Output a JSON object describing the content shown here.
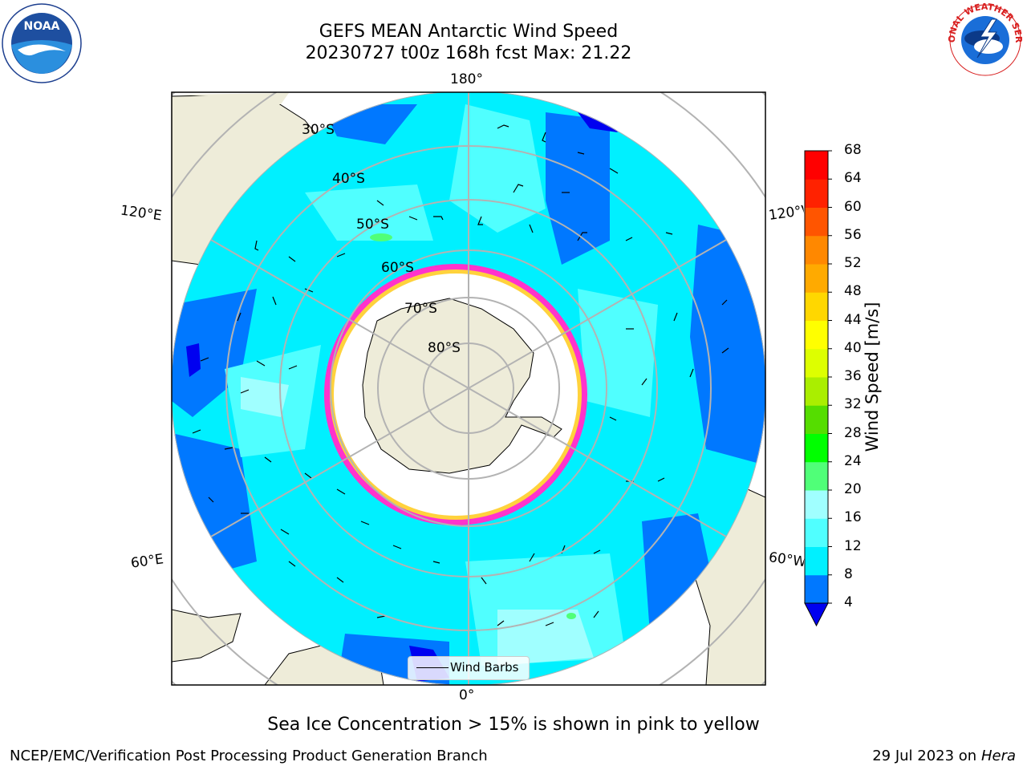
{
  "title": {
    "line1": "GEFS MEAN Antarctic Wind Speed",
    "line2": "20230727 t00z 168h fcst   Max: 21.22"
  },
  "logos": {
    "left": "NOAA",
    "right": "NATIONAL WEATHER SERVICE"
  },
  "map": {
    "projection": "south-polar-stereographic",
    "longitude_labels": {
      "top": "180°",
      "bottom": "0°",
      "left_upper": "120°E",
      "left_lower": "60°E",
      "right_upper": "120°W",
      "right_lower": "60°W"
    },
    "latitude_labels": [
      "30°S",
      "40°S",
      "50°S",
      "60°S",
      "70°S",
      "80°S"
    ],
    "legend_label": "Wind Barbs",
    "colors": {
      "land": "#eeecd9",
      "ice_edge_pink": "#ff33cc",
      "ice_edge_yellow": "#ffd23c"
    }
  },
  "colorbar": {
    "title": "Wind Speed [m/s]",
    "ticks": [
      "4",
      "8",
      "12",
      "16",
      "20",
      "24",
      "28",
      "32",
      "36",
      "40",
      "44",
      "48",
      "52",
      "56",
      "60",
      "64",
      "68"
    ],
    "colors": [
      "#0000f0",
      "#0078ff",
      "#00f0ff",
      "#50ffff",
      "#a0ffff",
      "#50ff78",
      "#00ff00",
      "#55dd00",
      "#aaee00",
      "#ddff00",
      "#ffff00",
      "#ffd700",
      "#ffaa00",
      "#ff8800",
      "#ff5500",
      "#ff2200",
      "#ff0000"
    ],
    "extend": "min"
  },
  "caption": "Sea Ice Concentration > 15% is shown in pink to yellow",
  "footer": {
    "left": "NCEP/EMC/Verification Post Processing Product Generation Branch",
    "right_date": "29 Jul 2023 on ",
    "right_host": "Hera"
  }
}
